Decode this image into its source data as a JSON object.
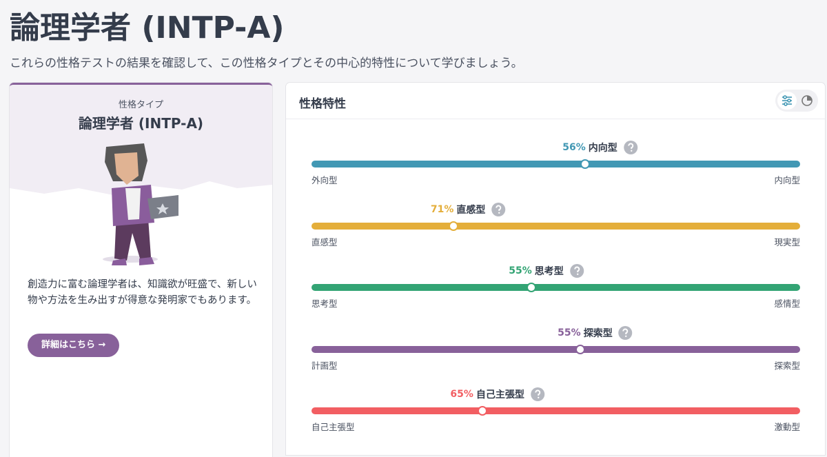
{
  "header": {
    "title": "論理学者 (INTP-A)",
    "subtitle": "これらの性格テストの結果を確認して、この性格タイプとその中心的特性について学びましょう。"
  },
  "type_card": {
    "label": "性格タイプ",
    "name": "論理学者 (INTP-A)",
    "description": "創造力に富む論理学者は、知識欲が旺盛で、新しい物や方法を生み出すが得意な発明家でもあります。",
    "button": "詳細はこちら →"
  },
  "traits_panel": {
    "title": "性格特性",
    "traits": [
      {
        "percent": 56,
        "percent_label": "56%",
        "trait": "内向型",
        "left": "外向型",
        "right": "内向型",
        "side": "right",
        "color": "#4298b4"
      },
      {
        "percent": 71,
        "percent_label": "71%",
        "trait": "直感型",
        "left": "直感型",
        "right": "現実型",
        "side": "left",
        "color": "#e4ae3a"
      },
      {
        "percent": 55,
        "percent_label": "55%",
        "trait": "思考型",
        "left": "思考型",
        "right": "感情型",
        "side": "left",
        "color": "#33a474"
      },
      {
        "percent": 55,
        "percent_label": "55%",
        "trait": "探索型",
        "left": "計画型",
        "right": "探索型",
        "side": "right",
        "color": "#88619a"
      },
      {
        "percent": 65,
        "percent_label": "65%",
        "trait": "自己主張型",
        "left": "自己主張型",
        "right": "激動型",
        "side": "left",
        "color": "#f25e62"
      }
    ]
  }
}
